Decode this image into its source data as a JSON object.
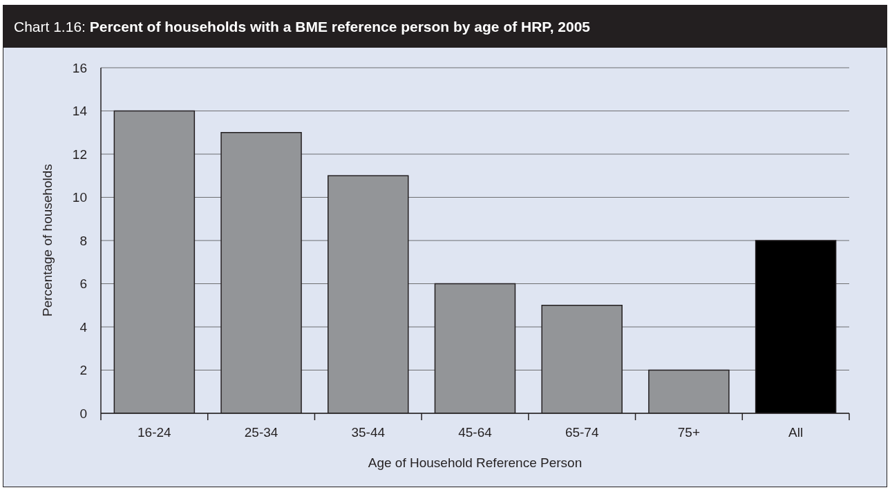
{
  "chart_data": {
    "type": "bar",
    "title": "Chart 1.16: Percent of households with a BME reference person by age of HRP, 2005",
    "xlabel": "Age of Household Reference Person",
    "ylabel": "Percentage of households",
    "categories": [
      "16-24",
      "25-34",
      "35-44",
      "45-64",
      "65-74",
      "75+",
      "All"
    ],
    "values": [
      14,
      13,
      11,
      6,
      5,
      2,
      8
    ],
    "colors": [
      "#939598",
      "#939598",
      "#939598",
      "#939598",
      "#939598",
      "#939598",
      "#000000"
    ],
    "ylim": [
      0,
      16
    ],
    "yticks": [
      0,
      2,
      4,
      6,
      8,
      10,
      12,
      14,
      16
    ],
    "grid": "y"
  }
}
